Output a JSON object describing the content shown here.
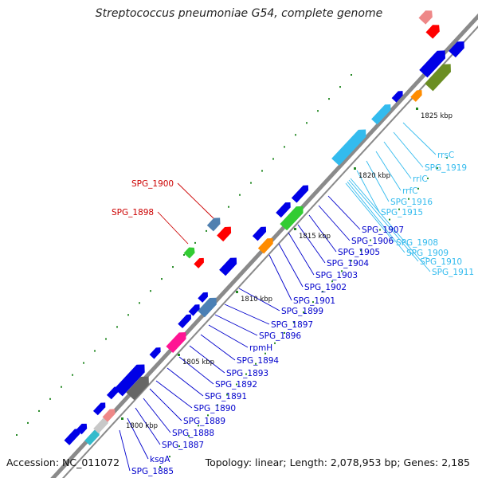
{
  "title": "Streptococcus pneumoniae G54, complete genome",
  "footer": {
    "accession": "Accession: NC_011072",
    "summary": "Topology: linear; Length: 2,078,953 bp; Genes: 2,185"
  },
  "colors": {
    "cds": "#0000e6",
    "rna": "#33ccff",
    "pseudo": "#cc0000",
    "label_cds": "#0000cc",
    "label_rna": "#33bbee",
    "label_pseudo": "#cc0000",
    "backbone": "#8a8a8a",
    "ruler_dot": "#228822"
  },
  "scale_labels": [
    "1800 kbp",
    "1805 kbp",
    "1810 kbp",
    "1815 kbp",
    "1820 kbp",
    "1825 kbp"
  ],
  "gene_labels": [
    {
      "text": "SPG_1885",
      "kind": "cds"
    },
    {
      "text": "ksgA",
      "kind": "cds"
    },
    {
      "text": "SPG_1887",
      "kind": "cds"
    },
    {
      "text": "SPG_1888",
      "kind": "cds"
    },
    {
      "text": "SPG_1889",
      "kind": "cds"
    },
    {
      "text": "SPG_1890",
      "kind": "cds"
    },
    {
      "text": "SPG_1891",
      "kind": "cds"
    },
    {
      "text": "SPG_1892",
      "kind": "cds"
    },
    {
      "text": "SPG_1893",
      "kind": "cds"
    },
    {
      "text": "SPG_1894",
      "kind": "cds"
    },
    {
      "text": "rpmH",
      "kind": "cds"
    },
    {
      "text": "SPG_1896",
      "kind": "cds"
    },
    {
      "text": "SPG_1897",
      "kind": "cds"
    },
    {
      "text": "SPG_1899",
      "kind": "cds"
    },
    {
      "text": "SPG_1901",
      "kind": "cds"
    },
    {
      "text": "SPG_1902",
      "kind": "cds"
    },
    {
      "text": "SPG_1903",
      "kind": "cds"
    },
    {
      "text": "SPG_1904",
      "kind": "cds"
    },
    {
      "text": "SPG_1905",
      "kind": "cds"
    },
    {
      "text": "SPG_1906",
      "kind": "cds"
    },
    {
      "text": "SPG_1907",
      "kind": "cds"
    },
    {
      "text": "SPG_1908",
      "kind": "rna"
    },
    {
      "text": "SPG_1909",
      "kind": "rna"
    },
    {
      "text": "SPG_1910",
      "kind": "rna"
    },
    {
      "text": "SPG_1911",
      "kind": "rna"
    },
    {
      "text": "SPG_1915",
      "kind": "rna"
    },
    {
      "text": "SPG_1916",
      "kind": "rna"
    },
    {
      "text": "rrfC",
      "kind": "rna"
    },
    {
      "text": "rrlC",
      "kind": "rna"
    },
    {
      "text": "SPG_1919",
      "kind": "rna"
    },
    {
      "text": "rrsC",
      "kind": "rna"
    },
    {
      "text": "SPG_1898",
      "kind": "pseudo"
    },
    {
      "text": "SPG_1900",
      "kind": "pseudo"
    }
  ]
}
